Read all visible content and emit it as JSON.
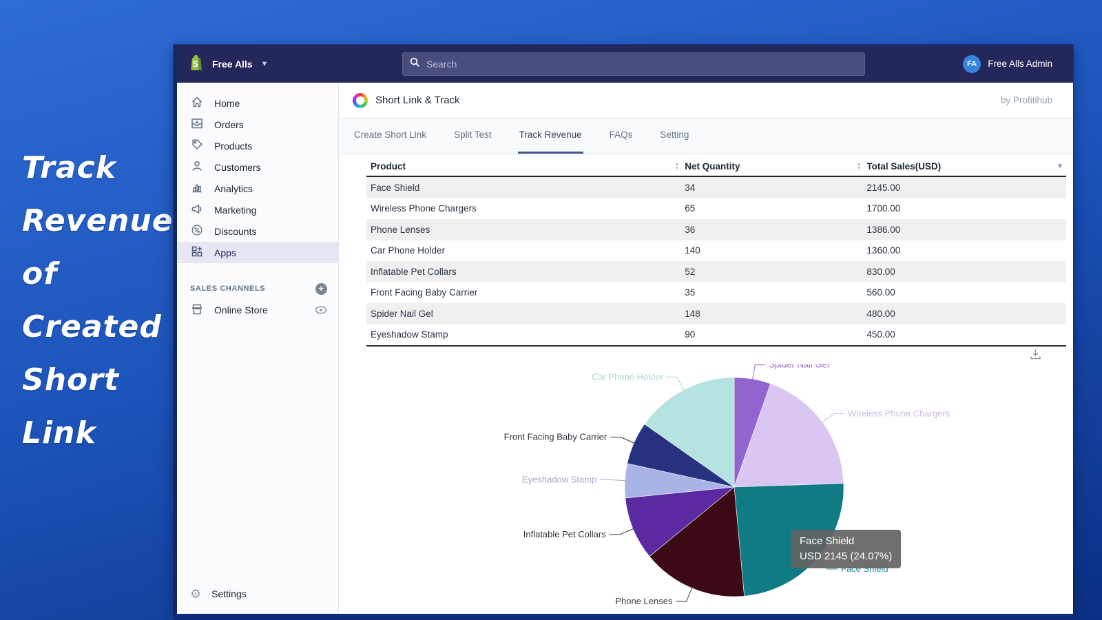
{
  "caption": {
    "lines": [
      "Track",
      "Revenue",
      "of",
      "Created",
      "Short",
      "Link"
    ]
  },
  "topbar": {
    "store_name": "Free Alls",
    "search_placeholder": "Search",
    "user_initials": "FA",
    "user_name": "Free Alls Admin"
  },
  "sidebar": {
    "items": [
      {
        "label": "Home",
        "icon": "home-icon",
        "selected": false
      },
      {
        "label": "Orders",
        "icon": "orders-icon",
        "selected": false
      },
      {
        "label": "Products",
        "icon": "products-icon",
        "selected": false
      },
      {
        "label": "Customers",
        "icon": "customers-icon",
        "selected": false
      },
      {
        "label": "Analytics",
        "icon": "analytics-icon",
        "selected": false
      },
      {
        "label": "Marketing",
        "icon": "marketing-icon",
        "selected": false
      },
      {
        "label": "Discounts",
        "icon": "discounts-icon",
        "selected": false
      },
      {
        "label": "Apps",
        "icon": "apps-icon",
        "selected": true
      }
    ],
    "sales_channels_label": "SALES CHANNELS",
    "online_store_label": "Online Store",
    "settings_label": "Settings"
  },
  "app_header": {
    "title": "Short Link & Track",
    "byline": "by Profitihub"
  },
  "tabs": [
    {
      "label": "Create Short Link",
      "active": false
    },
    {
      "label": "Split Test",
      "active": false
    },
    {
      "label": "Track Revenue",
      "active": true
    },
    {
      "label": "FAQs",
      "active": false
    },
    {
      "label": "Setting",
      "active": false
    }
  ],
  "table": {
    "columns": [
      "Product",
      "Net Quantity",
      "Total Sales(USD)"
    ],
    "rows": [
      {
        "product": "Face Shield",
        "qty": "34",
        "sales": "2145.00"
      },
      {
        "product": "Wireless Phone Chargers",
        "qty": "65",
        "sales": "1700.00"
      },
      {
        "product": "Phone Lenses",
        "qty": "36",
        "sales": "1386.00"
      },
      {
        "product": "Car Phone Holder",
        "qty": "140",
        "sales": "1360.00"
      },
      {
        "product": "Inflatable Pet Collars",
        "qty": "52",
        "sales": "830.00"
      },
      {
        "product": "Front Facing Baby Carrier",
        "qty": "35",
        "sales": "560.00"
      },
      {
        "product": "Spider Nail Gel",
        "qty": "148",
        "sales": "480.00"
      },
      {
        "product": "Eyeshadow Stamp",
        "qty": "90",
        "sales": "450.00"
      }
    ]
  },
  "chart_data": {
    "type": "pie",
    "note": "slices listed clockwise from 12 o'clock; values are Total Sales USD",
    "total": 8911,
    "slices": [
      {
        "label": "Spider Nail Gel",
        "value": 480,
        "pct": 5.39,
        "color": "#9264cf",
        "label_color": "#9264cf"
      },
      {
        "label": "Wireless Phone Chargers",
        "value": 1700,
        "pct": 19.08,
        "color": "#d9c6f2",
        "label_color": "#cdbde4"
      },
      {
        "label": "Face Shield",
        "value": 2145,
        "pct": 24.07,
        "color": "#0f7b85",
        "label_color": "#1d8a93"
      },
      {
        "label": "Phone Lenses",
        "value": 1386,
        "pct": 15.56,
        "color": "#3c0a14",
        "label_color": "#3a3f45"
      },
      {
        "label": "Inflatable Pet Collars",
        "value": 830,
        "pct": 9.31,
        "color": "#5b2aa0",
        "label_color": "#33303c"
      },
      {
        "label": "Eyeshadow Stamp",
        "value": 450,
        "pct": 5.05,
        "color": "#a9b3e6",
        "label_color": "#a3abcf"
      },
      {
        "label": "Front Facing Baby Carrier",
        "value": 560,
        "pct": 6.28,
        "color": "#27327e",
        "label_color": "#2b2f36"
      },
      {
        "label": "Car Phone Holder",
        "value": 1360,
        "pct": 15.26,
        "color": "#b5e3e2",
        "label_color": "#a8d6d4"
      }
    ],
    "tooltip": {
      "title": "Face Shield",
      "value": "USD 2145 (24.07%)"
    },
    "legend_position": "outside-labels"
  }
}
